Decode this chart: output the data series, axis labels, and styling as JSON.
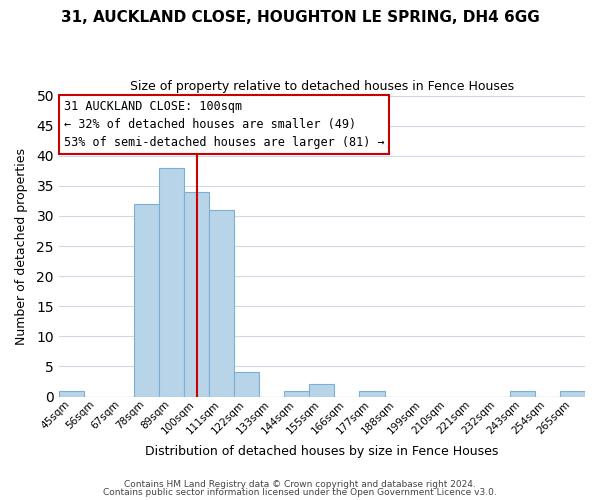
{
  "title": "31, AUCKLAND CLOSE, HOUGHTON LE SPRING, DH4 6GG",
  "subtitle": "Size of property relative to detached houses in Fence Houses",
  "xlabel": "Distribution of detached houses by size in Fence Houses",
  "ylabel": "Number of detached properties",
  "bar_color": "#b8d4e8",
  "bar_edge_color": "#7bafd4",
  "vline_color": "#cc0000",
  "vline_x": 5,
  "bins": [
    "45sqm",
    "56sqm",
    "67sqm",
    "78sqm",
    "89sqm",
    "100sqm",
    "111sqm",
    "122sqm",
    "133sqm",
    "144sqm",
    "155sqm",
    "166sqm",
    "177sqm",
    "188sqm",
    "199sqm",
    "210sqm",
    "221sqm",
    "232sqm",
    "243sqm",
    "254sqm",
    "265sqm"
  ],
  "counts": [
    1,
    0,
    0,
    32,
    38,
    34,
    31,
    4,
    0,
    1,
    2,
    0,
    1,
    0,
    0,
    0,
    0,
    0,
    1,
    0,
    1
  ],
  "ylim": [
    0,
    50
  ],
  "yticks": [
    0,
    5,
    10,
    15,
    20,
    25,
    30,
    35,
    40,
    45,
    50
  ],
  "annotation_title": "31 AUCKLAND CLOSE: 100sqm",
  "annotation_line1": "← 32% of detached houses are smaller (49)",
  "annotation_line2": "53% of semi-detached houses are larger (81) →",
  "annotation_box_color": "#ffffff",
  "annotation_box_edge": "#cc0000",
  "footnote1": "Contains HM Land Registry data © Crown copyright and database right 2024.",
  "footnote2": "Contains public sector information licensed under the Open Government Licence v3.0.",
  "background_color": "#ffffff",
  "grid_color": "#d0d8e8"
}
